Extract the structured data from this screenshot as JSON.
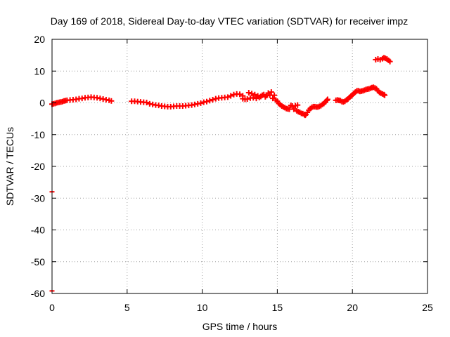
{
  "chart_data": {
    "type": "scatter",
    "title": "Day 169 of 2018, Sidereal Day-to-day VTEC variation (SDTVAR) for receiver impz",
    "xlabel": "GPS time / hours",
    "ylabel": "SDTVAR / TECUs",
    "xlim": [
      0,
      25
    ],
    "ylim": [
      -60,
      20
    ],
    "xticks": [
      0,
      5,
      10,
      15,
      20,
      25
    ],
    "yticks": [
      -60,
      -50,
      -40,
      -30,
      -20,
      -10,
      0,
      10,
      20
    ],
    "grid": true,
    "marker_color": "#ff0000",
    "series": [
      {
        "name": "SDTVAR",
        "color": "#ff0000",
        "points": [
          [
            0.0,
            -0.4
          ],
          [
            0.1,
            -0.3
          ],
          [
            0.2,
            -0.2
          ],
          [
            0.3,
            0.0
          ],
          [
            0.4,
            0.1
          ],
          [
            0.5,
            0.2
          ],
          [
            0.6,
            0.3
          ],
          [
            0.7,
            0.4
          ],
          [
            0.8,
            0.6
          ],
          [
            0.9,
            0.7
          ],
          [
            1.0,
            0.8
          ],
          [
            1.2,
            0.9
          ],
          [
            1.4,
            1.0
          ],
          [
            1.6,
            1.1
          ],
          [
            1.8,
            1.3
          ],
          [
            2.0,
            1.4
          ],
          [
            2.2,
            1.6
          ],
          [
            2.4,
            1.7
          ],
          [
            2.6,
            1.8
          ],
          [
            2.8,
            1.7
          ],
          [
            3.0,
            1.6
          ],
          [
            3.2,
            1.4
          ],
          [
            3.4,
            1.2
          ],
          [
            3.6,
            1.0
          ],
          [
            3.8,
            0.8
          ],
          [
            3.95,
            0.6
          ],
          [
            5.3,
            0.5
          ],
          [
            5.5,
            0.5
          ],
          [
            5.7,
            0.4
          ],
          [
            5.9,
            0.3
          ],
          [
            6.1,
            0.2
          ],
          [
            6.3,
            0.1
          ],
          [
            6.5,
            -0.3
          ],
          [
            6.7,
            -0.5
          ],
          [
            6.9,
            -0.7
          ],
          [
            7.1,
            -0.8
          ],
          [
            7.3,
            -1.0
          ],
          [
            7.5,
            -1.1
          ],
          [
            7.7,
            -1.2
          ],
          [
            7.9,
            -1.2
          ],
          [
            8.1,
            -1.1
          ],
          [
            8.3,
            -1.0
          ],
          [
            8.5,
            -1.0
          ],
          [
            8.7,
            -1.0
          ],
          [
            8.9,
            -0.9
          ],
          [
            9.1,
            -0.8
          ],
          [
            9.3,
            -0.7
          ],
          [
            9.5,
            -0.5
          ],
          [
            9.7,
            -0.3
          ],
          [
            9.9,
            -0.1
          ],
          [
            10.1,
            0.2
          ],
          [
            10.3,
            0.4
          ],
          [
            10.5,
            0.7
          ],
          [
            10.7,
            1.0
          ],
          [
            10.9,
            1.3
          ],
          [
            11.1,
            1.5
          ],
          [
            11.3,
            1.6
          ],
          [
            11.5,
            1.7
          ],
          [
            11.7,
            1.8
          ],
          [
            11.9,
            2.2
          ],
          [
            12.1,
            2.6
          ],
          [
            12.3,
            2.8
          ],
          [
            12.5,
            2.7
          ],
          [
            12.7,
            2.2
          ],
          [
            12.7,
            1.3
          ],
          [
            12.85,
            1.1
          ],
          [
            13.0,
            1.2
          ],
          [
            13.1,
            3.2
          ],
          [
            13.2,
            1.5
          ],
          [
            13.3,
            2.9
          ],
          [
            13.4,
            1.6
          ],
          [
            13.5,
            2.6
          ],
          [
            13.6,
            1.4
          ],
          [
            13.7,
            2.2
          ],
          [
            13.8,
            1.7
          ],
          [
            13.9,
            2.0
          ],
          [
            14.0,
            2.4
          ],
          [
            14.1,
            2.6
          ],
          [
            14.2,
            1.9
          ],
          [
            14.3,
            2.3
          ],
          [
            14.4,
            3.1
          ],
          [
            14.5,
            2.4
          ],
          [
            14.6,
            3.4
          ],
          [
            14.7,
            1.4
          ],
          [
            14.8,
            2.4
          ],
          [
            14.9,
            0.9
          ],
          [
            15.0,
            0.5
          ],
          [
            15.1,
            -0.2
          ],
          [
            15.2,
            -0.6
          ],
          [
            15.3,
            -1.0
          ],
          [
            15.4,
            -1.3
          ],
          [
            15.5,
            -1.5
          ],
          [
            15.6,
            -1.8
          ],
          [
            15.7,
            -1.9
          ],
          [
            15.8,
            -2.0
          ],
          [
            15.9,
            -0.8
          ],
          [
            16.0,
            -1.0
          ],
          [
            16.1,
            -2.0
          ],
          [
            16.2,
            -0.9
          ],
          [
            16.3,
            -2.5
          ],
          [
            16.35,
            -0.7
          ],
          [
            16.4,
            -2.8
          ],
          [
            16.5,
            -3.0
          ],
          [
            16.6,
            -3.3
          ],
          [
            16.7,
            -3.4
          ],
          [
            16.8,
            -3.7
          ],
          [
            16.85,
            -3.9
          ],
          [
            16.9,
            -3.7
          ],
          [
            17.0,
            -3.0
          ],
          [
            17.1,
            -2.3
          ],
          [
            17.2,
            -1.8
          ],
          [
            17.3,
            -1.4
          ],
          [
            17.4,
            -1.2
          ],
          [
            17.5,
            -1.2
          ],
          [
            17.6,
            -1.3
          ],
          [
            17.7,
            -1.3
          ],
          [
            17.8,
            -1.1
          ],
          [
            17.9,
            -0.9
          ],
          [
            18.0,
            -0.5
          ],
          [
            18.1,
            -0.2
          ],
          [
            18.2,
            0.3
          ],
          [
            18.3,
            0.8
          ],
          [
            18.35,
            1.1
          ],
          [
            18.9,
            0.8
          ],
          [
            19.0,
            0.9
          ],
          [
            19.1,
            0.8
          ],
          [
            19.2,
            0.7
          ],
          [
            19.3,
            0.4
          ],
          [
            19.4,
            0.3
          ],
          [
            19.5,
            0.5
          ],
          [
            19.6,
            0.9
          ],
          [
            19.7,
            1.2
          ],
          [
            19.8,
            1.7
          ],
          [
            19.9,
            2.1
          ],
          [
            20.0,
            2.5
          ],
          [
            20.1,
            3.0
          ],
          [
            20.2,
            3.4
          ],
          [
            20.3,
            3.8
          ],
          [
            20.4,
            3.8
          ],
          [
            20.5,
            3.6
          ],
          [
            20.6,
            3.7
          ],
          [
            20.7,
            3.8
          ],
          [
            20.8,
            4.0
          ],
          [
            20.9,
            4.2
          ],
          [
            21.0,
            4.3
          ],
          [
            21.1,
            4.4
          ],
          [
            21.2,
            4.6
          ],
          [
            21.3,
            4.8
          ],
          [
            21.4,
            4.9
          ],
          [
            21.5,
            4.7
          ],
          [
            21.6,
            4.4
          ],
          [
            21.7,
            3.8
          ],
          [
            21.8,
            3.3
          ],
          [
            21.9,
            3.0
          ],
          [
            22.0,
            2.8
          ],
          [
            22.1,
            2.6
          ],
          [
            22.15,
            2.4
          ],
          [
            21.55,
            13.6
          ],
          [
            21.7,
            13.8
          ],
          [
            21.85,
            13.6
          ],
          [
            22.0,
            13.9
          ],
          [
            22.1,
            14.2
          ],
          [
            22.2,
            14.0
          ],
          [
            22.3,
            13.8
          ],
          [
            22.4,
            13.4
          ],
          [
            22.5,
            13.0
          ],
          [
            0.0,
            -28.0
          ],
          [
            0.0,
            -59.2
          ]
        ]
      }
    ]
  }
}
